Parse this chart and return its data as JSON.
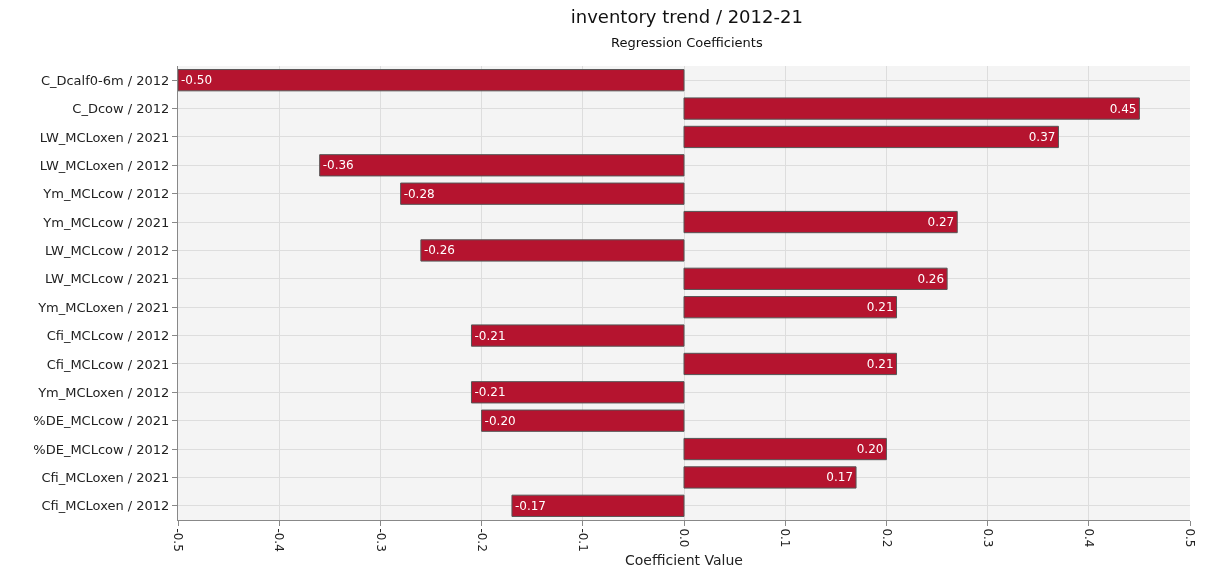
{
  "chart_data": {
    "type": "bar",
    "orientation": "horizontal",
    "title": "inventory trend / 2012-21",
    "subtitle": "Regression Coefficients",
    "xlabel": "Coefficient Value",
    "categories": [
      "C_Dcalf0-6m / 2012",
      "C_Dcow / 2012",
      "LW_MCLoxen / 2021",
      "LW_MCLoxen / 2012",
      "Ym_MCLcow / 2012",
      "Ym_MCLcow / 2021",
      "LW_MCLcow / 2012",
      "LW_MCLcow / 2021",
      "Ym_MCLoxen / 2021",
      "Cfi_MCLcow / 2012",
      "Cfi_MCLcow / 2021",
      "Ym_MCLoxen / 2012",
      "%DE_MCLcow / 2021",
      "%DE_MCLcow / 2012",
      "Cfi_MCLoxen / 2021",
      "Cfi_MCLoxen / 2012"
    ],
    "values": [
      -0.5,
      0.45,
      0.37,
      -0.36,
      -0.28,
      0.27,
      -0.26,
      0.26,
      0.21,
      -0.21,
      0.21,
      -0.21,
      -0.2,
      0.2,
      0.17,
      -0.17
    ],
    "value_labels": [
      "-0.50",
      "0.45",
      "0.37",
      "-0.36",
      "-0.28",
      "0.27",
      "-0.26",
      "0.26",
      "0.21",
      "-0.21",
      "0.21",
      "-0.21",
      "-0.20",
      "0.20",
      "0.17",
      "-0.17"
    ],
    "color": "#b5142f",
    "xlim": [
      -0.5,
      0.5
    ],
    "xticks": [
      -0.5,
      -0.4,
      -0.3,
      -0.2,
      -0.1,
      {
        "value": 0,
        "label": "0.0"
      },
      0.1,
      0.2,
      0.3,
      0.4,
      0.5
    ],
    "grid": true
  }
}
